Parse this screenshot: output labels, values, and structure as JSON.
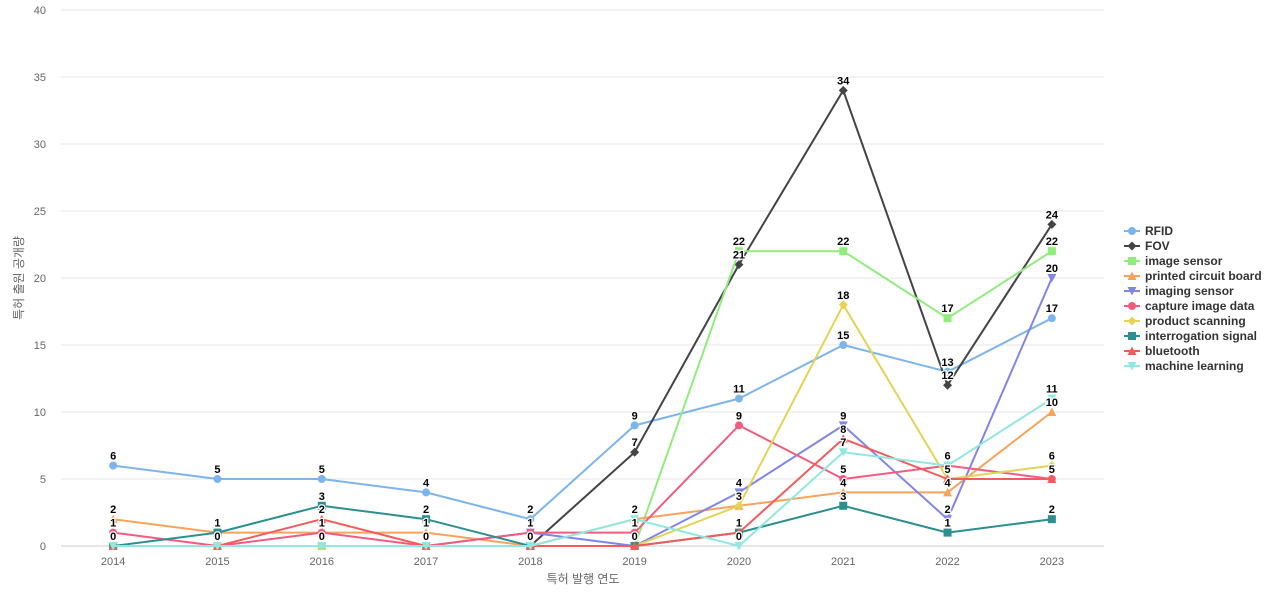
{
  "chart_data": {
    "type": "line",
    "title": "",
    "xlabel": "특허 발행 연도",
    "ylabel": "특허 출원 공개량",
    "categories": [
      "2014",
      "2015",
      "2016",
      "2017",
      "2018",
      "2019",
      "2020",
      "2021",
      "2022",
      "2023"
    ],
    "ylim": [
      0,
      40
    ],
    "yticks": [
      0,
      5,
      10,
      15,
      20,
      25,
      30,
      35,
      40
    ],
    "grid": true,
    "legend_position": "right",
    "series": [
      {
        "name": "RFID",
        "color": "#7cb5ec",
        "marker": "circle",
        "values": [
          6,
          5,
          5,
          4,
          2,
          9,
          11,
          15,
          13,
          17
        ]
      },
      {
        "name": "FOV",
        "color": "#434348",
        "marker": "diamond",
        "values": [
          null,
          null,
          null,
          null,
          0,
          7,
          21,
          34,
          12,
          24
        ]
      },
      {
        "name": "image sensor",
        "color": "#90ed7d",
        "marker": "square",
        "values": [
          0,
          0,
          0,
          0,
          0,
          0,
          22,
          22,
          17,
          22
        ]
      },
      {
        "name": "printed circuit board",
        "color": "#f7a35c",
        "marker": "triangle",
        "values": [
          2,
          1,
          1,
          1,
          0,
          2,
          3,
          4,
          4,
          10
        ]
      },
      {
        "name": "imaging sensor",
        "color": "#8085e9",
        "marker": "triangle-down",
        "values": [
          0,
          0,
          0,
          0,
          1,
          0,
          4,
          9,
          2,
          20
        ]
      },
      {
        "name": "capture image data",
        "color": "#f15c80",
        "marker": "circle",
        "values": [
          1,
          0,
          1,
          0,
          1,
          1,
          9,
          5,
          6,
          5
        ]
      },
      {
        "name": "product scanning",
        "color": "#e4d354",
        "marker": "diamond",
        "values": [
          0,
          0,
          0,
          0,
          0,
          0,
          3,
          18,
          5,
          6
        ]
      },
      {
        "name": "interrogation signal",
        "color": "#2b908f",
        "marker": "square",
        "values": [
          0,
          1,
          3,
          2,
          0,
          0,
          1,
          3,
          1,
          2
        ]
      },
      {
        "name": "bluetooth",
        "color": "#f45b5b",
        "marker": "triangle",
        "values": [
          0,
          0,
          2,
          0,
          0,
          0,
          1,
          8,
          5,
          5
        ]
      },
      {
        "name": "machine learning",
        "color": "#91e8e1",
        "marker": "triangle-down",
        "values": [
          0,
          0,
          0,
          0,
          0,
          2,
          0,
          7,
          6,
          11
        ]
      }
    ],
    "data_labels": [
      {
        "category": "2014",
        "value": 6,
        "text": "6"
      },
      {
        "category": "2014",
        "value": 2,
        "text": "2"
      },
      {
        "category": "2014",
        "value": 1,
        "text": "1"
      },
      {
        "category": "2014",
        "value": 0,
        "text": "0"
      },
      {
        "category": "2015",
        "value": 5,
        "text": "5"
      },
      {
        "category": "2015",
        "value": 1,
        "text": "1"
      },
      {
        "category": "2015",
        "value": 0,
        "text": "0"
      },
      {
        "category": "2016",
        "value": 5,
        "text": "5"
      },
      {
        "category": "2016",
        "value": 3,
        "text": "3"
      },
      {
        "category": "2016",
        "value": 2,
        "text": "2"
      },
      {
        "category": "2016",
        "value": 1,
        "text": "1"
      },
      {
        "category": "2016",
        "value": 0,
        "text": "0"
      },
      {
        "category": "2017",
        "value": 4,
        "text": "4"
      },
      {
        "category": "2017",
        "value": 2,
        "text": "2"
      },
      {
        "category": "2017",
        "value": 1,
        "text": "1"
      },
      {
        "category": "2017",
        "value": 0,
        "text": "0"
      },
      {
        "category": "2018",
        "value": 2,
        "text": "2"
      },
      {
        "category": "2018",
        "value": 1,
        "text": "1"
      },
      {
        "category": "2018",
        "value": 0,
        "text": "0"
      },
      {
        "category": "2019",
        "value": 9,
        "text": "9"
      },
      {
        "category": "2019",
        "value": 7,
        "text": "7"
      },
      {
        "category": "2019",
        "value": 2,
        "text": "2"
      },
      {
        "category": "2019",
        "value": 1,
        "text": "1"
      },
      {
        "category": "2019",
        "value": 0,
        "text": "0"
      },
      {
        "category": "2020",
        "value": 22,
        "text": "22"
      },
      {
        "category": "2020",
        "value": 21,
        "text": "21"
      },
      {
        "category": "2020",
        "value": 11,
        "text": "11"
      },
      {
        "category": "2020",
        "value": 9,
        "text": "9"
      },
      {
        "category": "2020",
        "value": 4,
        "text": "4"
      },
      {
        "category": "2020",
        "value": 3,
        "text": "3"
      },
      {
        "category": "2020",
        "value": 1,
        "text": "1"
      },
      {
        "category": "2020",
        "value": 0,
        "text": "0"
      },
      {
        "category": "2021",
        "value": 34,
        "text": "34"
      },
      {
        "category": "2021",
        "value": 22,
        "text": "22"
      },
      {
        "category": "2021",
        "value": 18,
        "text": "18"
      },
      {
        "category": "2021",
        "value": 15,
        "text": "15"
      },
      {
        "category": "2021",
        "value": 9,
        "text": "9"
      },
      {
        "category": "2021",
        "value": 8,
        "text": "8"
      },
      {
        "category": "2021",
        "value": 7,
        "text": "7"
      },
      {
        "category": "2021",
        "value": 5,
        "text": "5"
      },
      {
        "category": "2021",
        "value": 4,
        "text": "4"
      },
      {
        "category": "2021",
        "value": 3,
        "text": "3"
      },
      {
        "category": "2022",
        "value": 17,
        "text": "17"
      },
      {
        "category": "2022",
        "value": 13,
        "text": "13"
      },
      {
        "category": "2022",
        "value": 12,
        "text": "12"
      },
      {
        "category": "2022",
        "value": 6,
        "text": "6"
      },
      {
        "category": "2022",
        "value": 5,
        "text": "5"
      },
      {
        "category": "2022",
        "value": 4,
        "text": "4"
      },
      {
        "category": "2022",
        "value": 2,
        "text": "2"
      },
      {
        "category": "2022",
        "value": 1,
        "text": "1"
      },
      {
        "category": "2023",
        "value": 24,
        "text": "24"
      },
      {
        "category": "2023",
        "value": 22,
        "text": "22"
      },
      {
        "category": "2023",
        "value": 20,
        "text": "20"
      },
      {
        "category": "2023",
        "value": 17,
        "text": "17"
      },
      {
        "category": "2023",
        "value": 11,
        "text": "11"
      },
      {
        "category": "2023",
        "value": 10,
        "text": "10"
      },
      {
        "category": "2023",
        "value": 6,
        "text": "6"
      },
      {
        "category": "2023",
        "value": 5,
        "text": "5"
      },
      {
        "category": "2023",
        "value": 2,
        "text": "2"
      }
    ]
  }
}
